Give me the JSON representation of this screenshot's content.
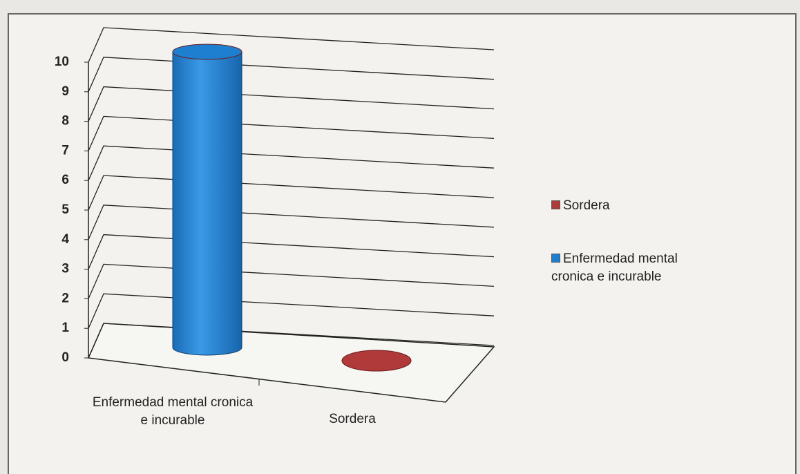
{
  "chart_data": {
    "type": "bar",
    "categories": [
      "Enfermedad mental cronica e incurable",
      "Sordera"
    ],
    "values": [
      10,
      0
    ],
    "colors": [
      "#1e7fd0",
      "#b03a3a"
    ],
    "ylim": [
      0,
      10
    ],
    "yticks": [
      0,
      1,
      2,
      3,
      4,
      5,
      6,
      7,
      8,
      9,
      10
    ],
    "grid": true,
    "legend": "right"
  }
}
